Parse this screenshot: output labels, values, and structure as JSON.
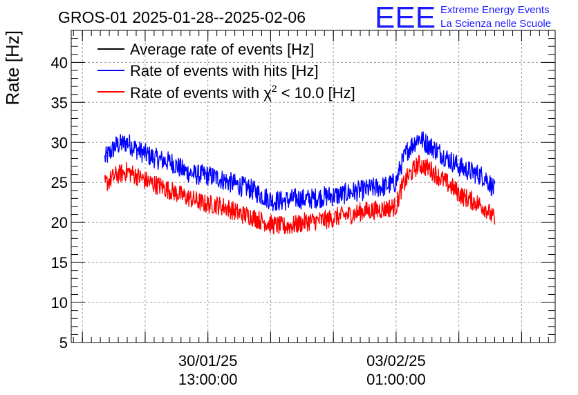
{
  "chart_data": {
    "type": "line",
    "title": "GROS-01 2025-01-28--2025-02-06",
    "ylabel": "Rate [Hz]",
    "xlabel": "",
    "ylim": [
      5,
      44
    ],
    "yticks": [
      5,
      10,
      15,
      20,
      25,
      30,
      35,
      40
    ],
    "x_range_hours": [
      0,
      216
    ],
    "xtick_labels": [
      {
        "date": "30/01/25",
        "time": "13:00:00",
        "hour": 61
      },
      {
        "date": "03/02/25",
        "time": "01:00:00",
        "hour": 145
      }
    ],
    "grid": true,
    "legend": {
      "position": "top-left",
      "entries": [
        {
          "label": "Average rate of events [Hz]",
          "color": "#000000"
        },
        {
          "label": "Rate of events with hits [Hz]",
          "color": "#0000ff"
        },
        {
          "label_prefix": "Rate of events with ",
          "label_symbol": "χ",
          "label_sup": "2",
          "label_suffix": " < 10.0 [Hz]",
          "color": "#ff0000"
        }
      ]
    },
    "series": [
      {
        "name": "Rate of events with hits [Hz]",
        "color": "#0000ff",
        "noise": 1.3,
        "x": [
          15,
          20,
          25,
          30,
          35,
          40,
          45,
          50,
          55,
          60,
          65,
          70,
          75,
          80,
          85,
          90,
          95,
          100,
          105,
          110,
          115,
          120,
          125,
          130,
          135,
          140,
          145,
          147,
          150,
          155,
          160,
          165,
          170,
          175,
          180,
          185,
          189
        ],
        "y": [
          28.0,
          29.6,
          30.0,
          29.0,
          28.3,
          27.8,
          27.5,
          26.5,
          26.0,
          25.9,
          25.6,
          25.1,
          24.6,
          24.2,
          23.4,
          22.7,
          22.7,
          23.0,
          22.9,
          23.1,
          23.3,
          23.4,
          23.8,
          24.0,
          24.3,
          24.5,
          25.0,
          27.0,
          29.0,
          30.6,
          29.6,
          28.6,
          27.6,
          26.7,
          26.2,
          25.6,
          24.0
        ]
      },
      {
        "name": "Rate of events with χ2 < 10.0 [Hz]",
        "color": "#ff0000",
        "noise": 1.2,
        "x": [
          15,
          20,
          25,
          30,
          35,
          40,
          45,
          50,
          55,
          60,
          65,
          70,
          75,
          80,
          85,
          90,
          95,
          100,
          105,
          110,
          115,
          120,
          125,
          130,
          135,
          140,
          145,
          147,
          150,
          155,
          160,
          165,
          170,
          175,
          180,
          185,
          189
        ],
        "y": [
          24.8,
          25.9,
          26.4,
          25.7,
          25.0,
          24.5,
          23.9,
          23.3,
          22.8,
          22.3,
          22.2,
          21.8,
          21.1,
          20.8,
          20.2,
          19.7,
          19.5,
          19.7,
          20.1,
          20.2,
          20.4,
          20.8,
          21.0,
          21.4,
          21.5,
          21.7,
          22.0,
          24.0,
          25.6,
          27.3,
          26.7,
          25.5,
          24.4,
          23.2,
          22.6,
          21.8,
          20.3
        ]
      }
    ]
  },
  "logo": {
    "mark": "EEE",
    "line1": "Extreme Energy Events",
    "line2": "La Scienza nelle Scuole",
    "color": "#1a1aff"
  }
}
